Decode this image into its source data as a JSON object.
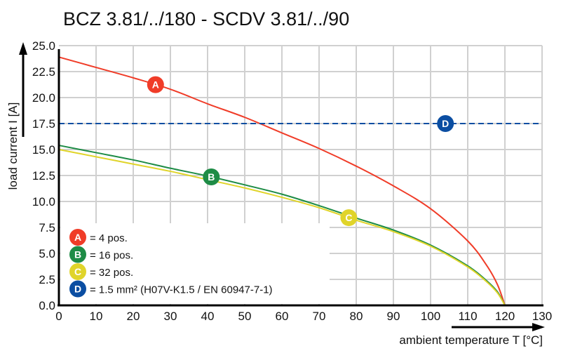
{
  "chart_data": {
    "type": "line",
    "title": "BCZ 3.81/../180 - SCDV 3.81/../90",
    "xlabel": "ambient temperature T [°C]",
    "ylabel": "load current I [A]",
    "xlim": [
      0,
      130
    ],
    "ylim": [
      0,
      25
    ],
    "xticks": [
      "0",
      "10",
      "20",
      "30",
      "40",
      "50",
      "60",
      "70",
      "80",
      "90",
      "100",
      "110",
      "120",
      "130"
    ],
    "yticks": [
      "0.0",
      "2.5",
      "5.0",
      "7.5",
      "10.0",
      "12.5",
      "15.0",
      "17.5",
      "20.0",
      "22.5",
      "25.0"
    ],
    "grid": true,
    "legend_placement": "bottom-left",
    "series": [
      {
        "name": "A",
        "legend": "= 4 pos.",
        "color": "#f03c28",
        "style": "solid",
        "marker_x": 26,
        "x": [
          0,
          10,
          20,
          30,
          40,
          50,
          60,
          70,
          80,
          90,
          100,
          110,
          115,
          118,
          120
        ],
        "y": [
          23.9,
          22.9,
          21.9,
          20.8,
          19.4,
          18.1,
          16.6,
          15.1,
          13.4,
          11.5,
          9.3,
          6.2,
          3.9,
          2.0,
          0
        ]
      },
      {
        "name": "B",
        "legend": "= 16 pos.",
        "color": "#1e8c46",
        "style": "solid",
        "marker_x": 41,
        "x": [
          0,
          10,
          20,
          30,
          40,
          50,
          60,
          70,
          80,
          90,
          100,
          110,
          115,
          118,
          120
        ],
        "y": [
          15.4,
          14.7,
          14.0,
          13.2,
          12.45,
          11.6,
          10.7,
          9.6,
          8.4,
          7.25,
          5.8,
          3.8,
          2.4,
          1.3,
          0
        ]
      },
      {
        "name": "C",
        "legend": "= 32 pos.",
        "color": "#e0d42a",
        "style": "solid",
        "marker_x": 78,
        "x": [
          0,
          10,
          20,
          30,
          40,
          50,
          60,
          70,
          80,
          90,
          100,
          110,
          115,
          118,
          120
        ],
        "y": [
          15.0,
          14.3,
          13.6,
          12.9,
          12.1,
          11.3,
          10.4,
          9.4,
          8.2,
          7.1,
          5.7,
          3.7,
          2.3,
          1.2,
          0
        ]
      },
      {
        "name": "D",
        "legend": "= 1.5 mm² (H07V-K1.5 / EN 60947-7-1)",
        "color": "#0b4ea2",
        "style": "dashed",
        "marker_x": 104,
        "x": [
          0,
          130
        ],
        "y": [
          17.5,
          17.5
        ]
      }
    ]
  }
}
